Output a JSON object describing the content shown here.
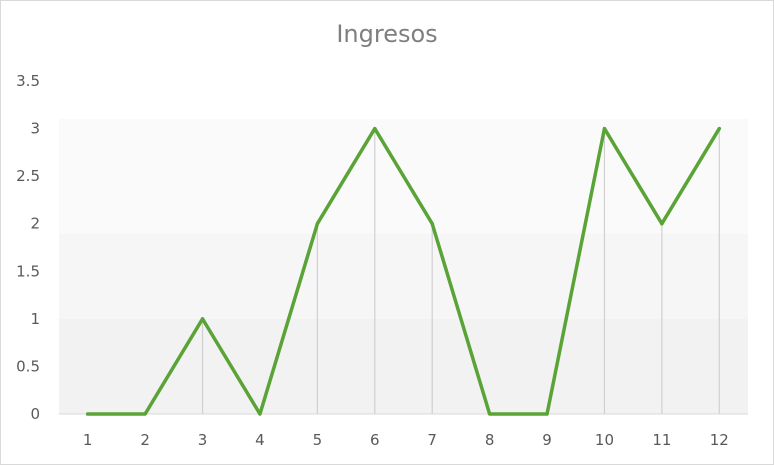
{
  "chart_data": {
    "type": "line",
    "title": "Ingresos",
    "xlabel": "",
    "ylabel": "",
    "categories": [
      "1",
      "2",
      "3",
      "4",
      "5",
      "6",
      "7",
      "8",
      "9",
      "10",
      "11",
      "12"
    ],
    "series": [
      {
        "values": [
          0,
          0,
          1,
          0,
          2,
          3,
          2,
          0,
          0,
          3,
          2,
          3
        ],
        "color": "#5aa336"
      }
    ],
    "ylim": [
      0,
      3.5
    ],
    "yticks": [
      "0",
      "0.5",
      "1",
      "1.5",
      "2",
      "2.5",
      "3",
      "3.5"
    ],
    "drop_lines": true,
    "background_bands": [
      "#f2f2f2",
      "#f6f6f6",
      "#fafafa"
    ],
    "legend": "none"
  }
}
